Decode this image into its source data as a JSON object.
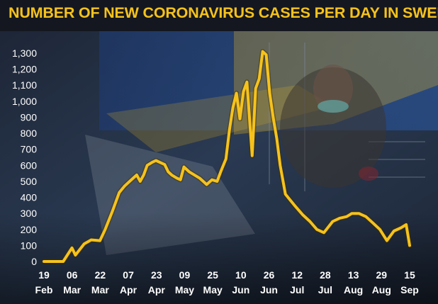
{
  "chart_data": {
    "type": "line",
    "title": "NUMBER OF NEW CORONAVIRUS CASES PER DAY IN SWEDEN",
    "xlabel": "",
    "ylabel": "",
    "ylim": [
      0,
      1300
    ],
    "yticks": [
      "0",
      "100",
      "200",
      "300",
      "400",
      "500",
      "600",
      "700",
      "800",
      "900",
      "1,000",
      "1,100",
      "1,200",
      "1,300"
    ],
    "xticks": [
      {
        "day": "19",
        "month": "Feb"
      },
      {
        "day": "06",
        "month": "Mar"
      },
      {
        "day": "22",
        "month": "Mar"
      },
      {
        "day": "07",
        "month": "Apr"
      },
      {
        "day": "23",
        "month": "Apr"
      },
      {
        "day": "09",
        "month": "May"
      },
      {
        "day": "25",
        "month": "May"
      },
      {
        "day": "10",
        "month": "Jun"
      },
      {
        "day": "26",
        "month": "Jun"
      },
      {
        "day": "12",
        "month": "Jul"
      },
      {
        "day": "28",
        "month": "Jul"
      },
      {
        "day": "13",
        "month": "Aug"
      },
      {
        "day": "29",
        "month": "Aug"
      },
      {
        "day": "15",
        "month": "Sep"
      }
    ],
    "grid": false,
    "line_color": "#f6c21b",
    "x_start": "2020-02-19",
    "x_end": "2020-09-15",
    "series": [
      {
        "x": [
          "2020-02-19",
          "2020-03-01",
          "2020-03-06",
          "2020-03-08",
          "2020-03-13",
          "2020-03-17",
          "2020-03-22",
          "2020-03-25",
          "2020-03-29",
          "2020-04-02",
          "2020-04-05",
          "2020-04-08",
          "2020-04-10",
          "2020-04-12",
          "2020-04-14",
          "2020-04-16",
          "2020-04-18",
          "2020-04-21",
          "2020-04-23",
          "2020-04-26",
          "2020-04-28",
          "2020-04-30",
          "2020-05-02",
          "2020-05-05",
          "2020-05-07",
          "2020-05-09",
          "2020-05-12",
          "2020-05-15",
          "2020-05-18",
          "2020-05-20",
          "2020-05-22",
          "2020-05-25",
          "2020-05-28",
          "2020-05-30",
          "2020-06-02",
          "2020-06-04",
          "2020-06-06",
          "2020-06-08",
          "2020-06-10",
          "2020-06-12",
          "2020-06-14",
          "2020-06-17",
          "2020-06-19",
          "2020-06-21",
          "2020-06-23",
          "2020-06-25",
          "2020-06-27",
          "2020-06-29",
          "2020-07-01",
          "2020-07-03",
          "2020-07-06",
          "2020-07-09",
          "2020-07-12",
          "2020-07-16",
          "2020-07-20",
          "2020-07-24",
          "2020-07-28",
          "2020-08-02",
          "2020-08-06",
          "2020-08-10",
          "2020-08-13",
          "2020-08-17",
          "2020-08-21",
          "2020-08-25",
          "2020-08-29",
          "2020-09-02",
          "2020-09-06",
          "2020-09-10",
          "2020-09-13",
          "2020-09-15"
        ],
        "values": [
          0,
          0,
          85,
          40,
          110,
          135,
          130,
          200,
          310,
          430,
          470,
          500,
          520,
          540,
          500,
          540,
          600,
          620,
          630,
          615,
          605,
          560,
          540,
          520,
          510,
          590,
          560,
          540,
          520,
          500,
          480,
          510,
          500,
          560,
          640,
          820,
          960,
          1050,
          890,
          1060,
          1120,
          660,
          1080,
          1140,
          1310,
          1290,
          1050,
          900,
          770,
          600,
          420,
          380,
          340,
          290,
          250,
          200,
          180,
          250,
          270,
          280,
          300,
          300,
          280,
          240,
          200,
          130,
          190,
          210,
          230,
          100
        ]
      }
    ]
  }
}
